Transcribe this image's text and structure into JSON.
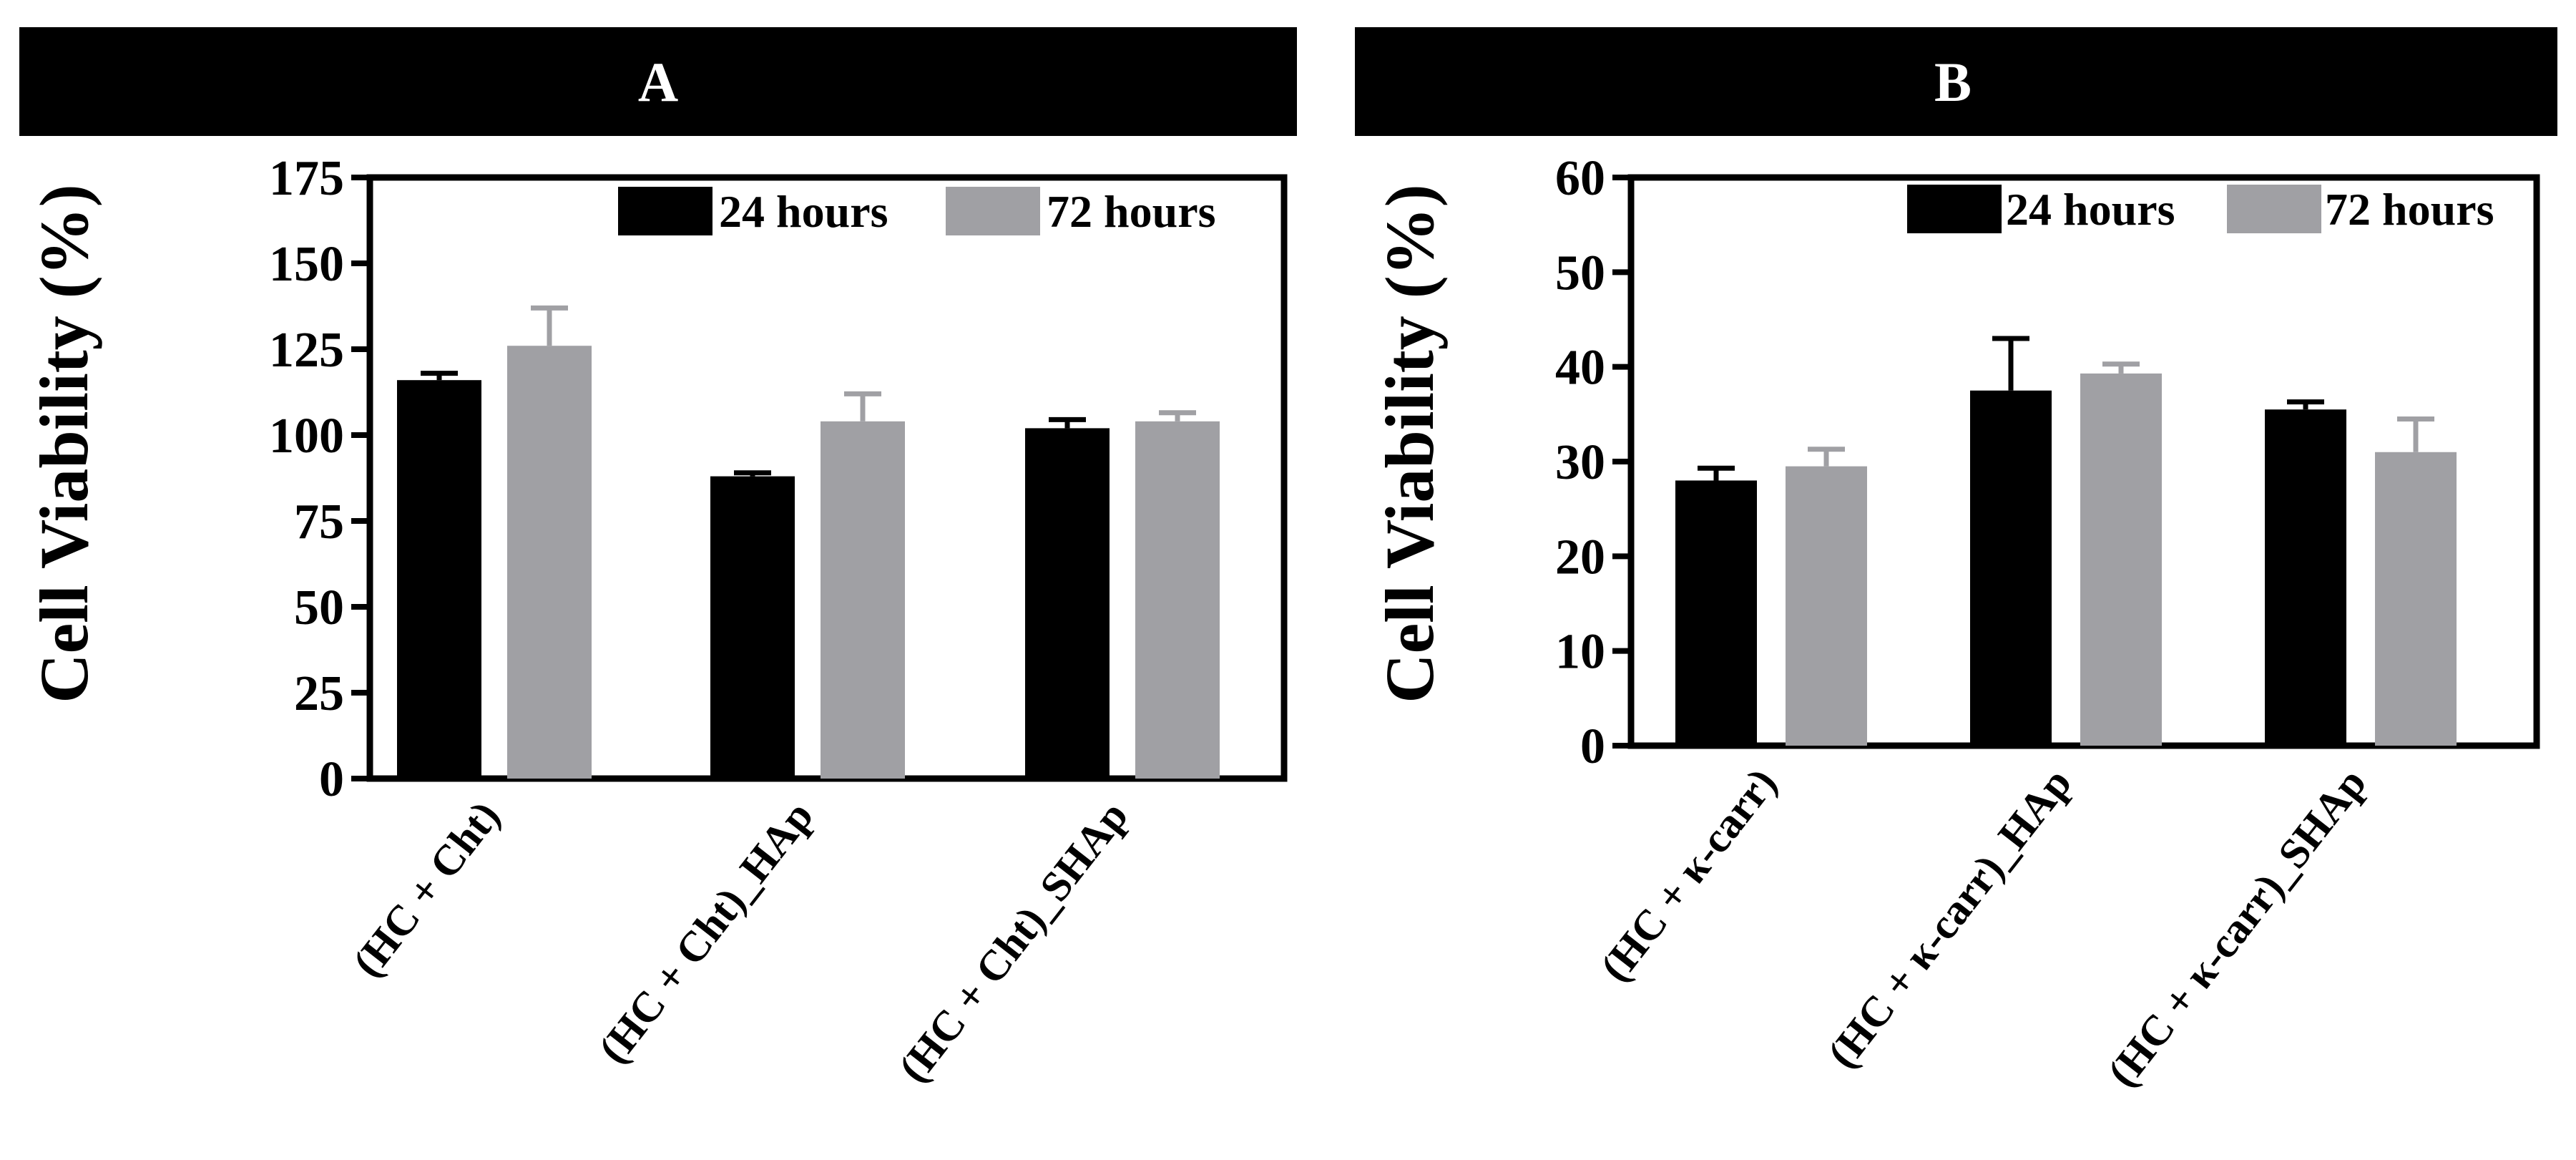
{
  "chart_data": [
    {
      "type": "bar",
      "title": "A",
      "ylabel": "Cell Viability (%)",
      "ylim": [
        0,
        175
      ],
      "yticks": [
        0,
        25,
        50,
        75,
        100,
        125,
        150,
        175
      ],
      "categories": [
        "(HC + Cht)",
        "(HC + Cht)_HAp",
        "(HC + Cht)_SHAp"
      ],
      "series": [
        {
          "name": "24 hours",
          "color": "#000000",
          "values": [
            116,
            88,
            102
          ],
          "errors": [
            2,
            1,
            2.5
          ]
        },
        {
          "name": "72 hours",
          "color": "#a0a0a4",
          "values": [
            126,
            104,
            104
          ],
          "errors": [
            11,
            8,
            2.5
          ]
        }
      ],
      "legend": "top-right",
      "grid": false
    },
    {
      "type": "bar",
      "title": "B",
      "ylabel": "Cell Viability (%)",
      "ylim": [
        0,
        60
      ],
      "yticks": [
        0,
        10,
        20,
        30,
        40,
        50,
        60
      ],
      "categories": [
        "(HC + κ-carr)",
        "(HC + κ-carr)_HAp",
        "(HC + κ-carr)_SHAp"
      ],
      "series": [
        {
          "name": "24 hours",
          "color": "#000000",
          "values": [
            28,
            37.5,
            35.5
          ],
          "errors": [
            1.3,
            5.5,
            0.8
          ]
        },
        {
          "name": "72 hours",
          "color": "#a0a0a4",
          "values": [
            29.5,
            39.3,
            31
          ],
          "errors": [
            1.8,
            1,
            3.5
          ]
        }
      ],
      "legend": "top-right",
      "grid": false
    }
  ]
}
